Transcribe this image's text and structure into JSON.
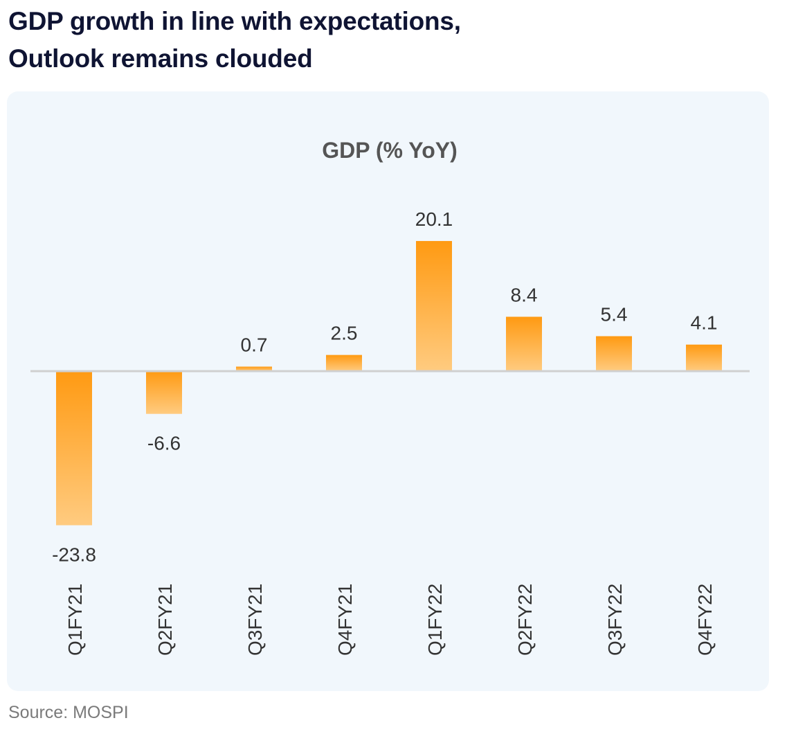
{
  "headline": {
    "line1": "GDP growth in line with expectations,",
    "line2": "Outlook remains clouded"
  },
  "source": "Source: MOSPI",
  "colors": {
    "headline": "#0f1433",
    "panel_background": "#f1f7fc",
    "bar_top": "#ff9a12",
    "bar_bottom": "#ffcb80",
    "zero_line": "#d0d0d0",
    "label_text": "#333333",
    "title_text": "#555555"
  },
  "chart_data": {
    "type": "bar",
    "title": "GDP (% YoY)",
    "xlabel": "",
    "ylabel": "",
    "categories": [
      "Q1FY21",
      "Q2FY21",
      "Q3FY21",
      "Q4FY21",
      "Q1FY22",
      "Q2FY22",
      "Q3FY22",
      "Q4FY22"
    ],
    "values": [
      -23.8,
      -6.6,
      0.7,
      2.5,
      20.1,
      8.4,
      5.4,
      4.1
    ],
    "data_labels": [
      "-23.8",
      "-6.6",
      "0.7",
      "2.5",
      "20.1",
      "8.4",
      "5.4",
      "4.1"
    ],
    "ylim": [
      -23.8,
      20.1
    ],
    "grid": false,
    "legend": "none",
    "category_label_orientation": "vertical"
  }
}
